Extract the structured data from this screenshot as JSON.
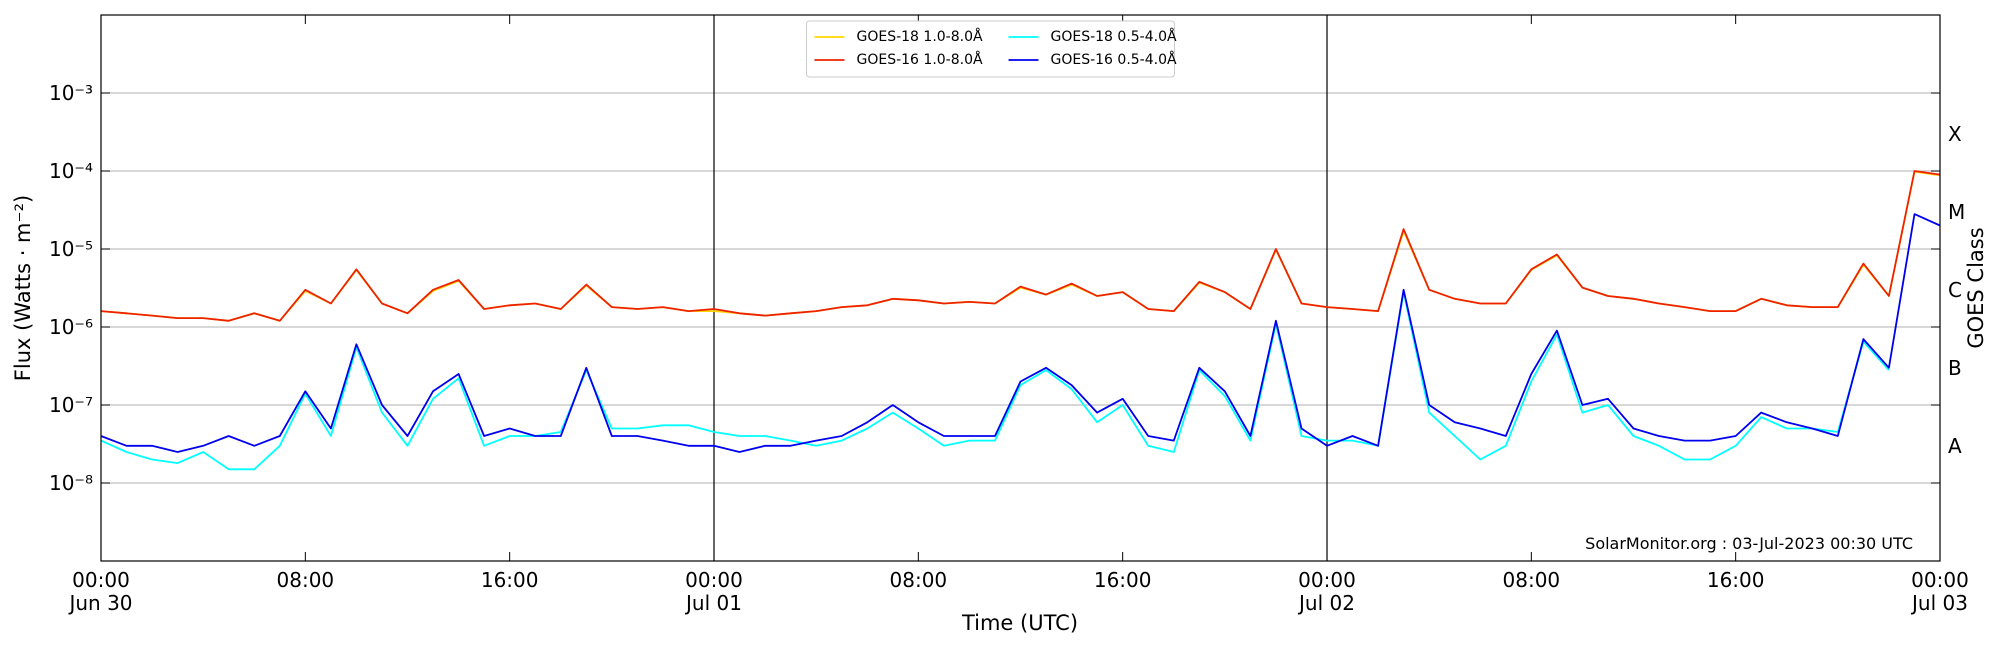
{
  "chart_data": {
    "type": "line",
    "yscale": "log",
    "grid": true,
    "legend_position": "upper center",
    "xlabel": "Time (UTC)",
    "ylabel": "Flux (Watts · m⁻²)",
    "y2label": "GOES Class",
    "annotation": "SolarMonitor.org : 03-Jul-2023 00:30 UTC",
    "x": [
      "Jun 30 00:00",
      "Jun 30 01:00",
      "Jun 30 02:00",
      "Jun 30 03:00",
      "Jun 30 04:00",
      "Jun 30 05:00",
      "Jun 30 06:00",
      "Jun 30 07:00",
      "Jun 30 08:00",
      "Jun 30 09:00",
      "Jun 30 10:00",
      "Jun 30 11:00",
      "Jun 30 12:00",
      "Jun 30 13:00",
      "Jun 30 14:00",
      "Jun 30 15:00",
      "Jun 30 16:00",
      "Jun 30 17:00",
      "Jun 30 18:00",
      "Jun 30 19:00",
      "Jun 30 20:00",
      "Jun 30 21:00",
      "Jun 30 22:00",
      "Jun 30 23:00",
      "Jul 01 00:00",
      "Jul 01 01:00",
      "Jul 01 02:00",
      "Jul 01 03:00",
      "Jul 01 04:00",
      "Jul 01 05:00",
      "Jul 01 06:00",
      "Jul 01 07:00",
      "Jul 01 08:00",
      "Jul 01 09:00",
      "Jul 01 10:00",
      "Jul 01 11:00",
      "Jul 01 12:00",
      "Jul 01 13:00",
      "Jul 01 14:00",
      "Jul 01 15:00",
      "Jul 01 16:00",
      "Jul 01 17:00",
      "Jul 01 18:00",
      "Jul 01 19:00",
      "Jul 01 20:00",
      "Jul 01 21:00",
      "Jul 01 22:00",
      "Jul 01 23:00",
      "Jul 02 00:00",
      "Jul 02 01:00",
      "Jul 02 02:00",
      "Jul 02 03:00",
      "Jul 02 04:00",
      "Jul 02 05:00",
      "Jul 02 06:00",
      "Jul 02 07:00",
      "Jul 02 08:00",
      "Jul 02 09:00",
      "Jul 02 10:00",
      "Jul 02 11:00",
      "Jul 02 12:00",
      "Jul 02 13:00",
      "Jul 02 14:00",
      "Jul 02 15:00",
      "Jul 02 16:00",
      "Jul 02 17:00",
      "Jul 02 18:00",
      "Jul 02 19:00",
      "Jul 02 20:00",
      "Jul 02 21:00",
      "Jul 02 22:00",
      "Jul 02 23:00",
      "Jul 03 00:00"
    ],
    "xlim": [
      "Jun 30 00:00",
      "Jul 03 00:00"
    ],
    "xticks": [
      {
        "value": "Jun 30 00:00",
        "label": "00:00\nJun 30"
      },
      {
        "value": "Jun 30 08:00",
        "label": "08:00"
      },
      {
        "value": "Jun 30 16:00",
        "label": "16:00"
      },
      {
        "value": "Jul 01 00:00",
        "label": "00:00\nJul 01"
      },
      {
        "value": "Jul 01 08:00",
        "label": "08:00"
      },
      {
        "value": "Jul 01 16:00",
        "label": "16:00"
      },
      {
        "value": "Jul 02 00:00",
        "label": "00:00\nJul 02"
      },
      {
        "value": "Jul 02 08:00",
        "label": "08:00"
      },
      {
        "value": "Jul 02 16:00",
        "label": "16:00"
      },
      {
        "value": "Jul 03 00:00",
        "label": "00:00\nJul 03"
      }
    ],
    "ylim": [
      1e-09,
      0.01
    ],
    "yticks": [
      {
        "value": 1e-08,
        "label": "10⁻⁸"
      },
      {
        "value": 1e-07,
        "label": "10⁻⁷"
      },
      {
        "value": 1e-06,
        "label": "10⁻⁶"
      },
      {
        "value": 1e-05,
        "label": "10⁻⁵"
      },
      {
        "value": 0.0001,
        "label": "10⁻⁴"
      },
      {
        "value": 0.001,
        "label": "10⁻³"
      }
    ],
    "y2lim": [
      1e-09,
      0.01
    ],
    "y2ticks": [
      {
        "value": 3e-08,
        "label": "A"
      },
      {
        "value": 3e-07,
        "label": "B"
      },
      {
        "value": 3e-06,
        "label": "C"
      },
      {
        "value": 3e-05,
        "label": "M"
      },
      {
        "value": 0.0003,
        "label": "X"
      }
    ],
    "series": [
      {
        "name": "GOES-18 1.0-8.0Å",
        "color": "#ffd700",
        "values": [
          1.6e-06,
          1.5e-06,
          1.4e-06,
          1.3e-06,
          1.3e-06,
          1.2e-06,
          1.5e-06,
          1.2e-06,
          2.9e-06,
          2e-06,
          5.4e-06,
          2e-06,
          1.5e-06,
          2.9e-06,
          3.9e-06,
          1.7e-06,
          1.9e-06,
          2e-06,
          1.7e-06,
          3.4e-06,
          1.8e-06,
          1.7e-06,
          1.8e-06,
          1.6e-06,
          1.6e-06,
          1.5e-06,
          1.4e-06,
          1.5e-06,
          1.6e-06,
          1.8e-06,
          1.9e-06,
          2.3e-06,
          2.2e-06,
          2e-06,
          2.1e-06,
          2e-06,
          3.2e-06,
          2.6e-06,
          3.5e-06,
          2.5e-06,
          2.8e-06,
          1.7e-06,
          1.6e-06,
          3.7e-06,
          2.8e-06,
          1.7e-06,
          9.8e-06,
          2e-06,
          1.8e-06,
          1.7e-06,
          1.6e-06,
          1.7e-05,
          3e-06,
          2.3e-06,
          2e-06,
          2e-06,
          5.4e-06,
          8.3e-06,
          3.2e-06,
          2.5e-06,
          2.3e-06,
          2e-06,
          1.8e-06,
          1.6e-06,
          1.6e-06,
          2.3e-06,
          1.9e-06,
          1.8e-06,
          1.8e-06,
          6.3e-06,
          2.5e-06,
          9.8e-05,
          8.8e-05
        ]
      },
      {
        "name": "GOES-16 1.0-8.0Å",
        "color": "#ee2200",
        "values": [
          1.6e-06,
          1.5e-06,
          1.4e-06,
          1.3e-06,
          1.3e-06,
          1.2e-06,
          1.5e-06,
          1.2e-06,
          3e-06,
          2e-06,
          5.5e-06,
          2e-06,
          1.5e-06,
          3e-06,
          4e-06,
          1.7e-06,
          1.9e-06,
          2e-06,
          1.7e-06,
          3.5e-06,
          1.8e-06,
          1.7e-06,
          1.8e-06,
          1.6e-06,
          1.7e-06,
          1.5e-06,
          1.4e-06,
          1.5e-06,
          1.6e-06,
          1.8e-06,
          1.9e-06,
          2.3e-06,
          2.2e-06,
          2e-06,
          2.1e-06,
          2e-06,
          3.3e-06,
          2.6e-06,
          3.6e-06,
          2.5e-06,
          2.8e-06,
          1.7e-06,
          1.6e-06,
          3.8e-06,
          2.8e-06,
          1.7e-06,
          1e-05,
          2e-06,
          1.8e-06,
          1.7e-06,
          1.6e-06,
          1.8e-05,
          3e-06,
          2.3e-06,
          2e-06,
          2e-06,
          5.5e-06,
          8.5e-06,
          3.2e-06,
          2.5e-06,
          2.3e-06,
          2e-06,
          1.8e-06,
          1.6e-06,
          1.6e-06,
          2.3e-06,
          1.9e-06,
          1.8e-06,
          1.8e-06,
          6.5e-06,
          2.5e-06,
          0.0001,
          9e-05
        ]
      },
      {
        "name": "GOES-18 0.5-4.0Å",
        "color": "#00ffff",
        "values": [
          3.5e-08,
          2.5e-08,
          2e-08,
          1.8e-08,
          2.5e-08,
          1.5e-08,
          1.5e-08,
          3e-08,
          1.4e-07,
          4e-08,
          5.5e-07,
          8e-08,
          3e-08,
          1.2e-07,
          2.2e-07,
          3e-08,
          4e-08,
          4e-08,
          4.5e-08,
          2.8e-07,
          5e-08,
          5e-08,
          5.5e-08,
          5.5e-08,
          4.5e-08,
          4e-08,
          4e-08,
          3.5e-08,
          3e-08,
          3.5e-08,
          5e-08,
          8e-08,
          5e-08,
          3e-08,
          3.5e-08,
          3.5e-08,
          1.8e-07,
          2.8e-07,
          1.6e-07,
          6e-08,
          1e-07,
          3e-08,
          2.5e-08,
          2.8e-07,
          1.3e-07,
          3.5e-08,
          1.1e-06,
          4e-08,
          3.5e-08,
          3.5e-08,
          3e-08,
          2.8e-06,
          8e-08,
          4e-08,
          2e-08,
          3e-08,
          2e-07,
          8e-07,
          8e-08,
          1e-07,
          4e-08,
          3e-08,
          2e-08,
          2e-08,
          3e-08,
          7e-08,
          5e-08,
          5e-08,
          4.5e-08,
          6.5e-07,
          2.8e-07,
          null,
          null
        ]
      },
      {
        "name": "GOES-16 0.5-4.0Å",
        "color": "#0000ee",
        "values": [
          4e-08,
          3e-08,
          3e-08,
          2.5e-08,
          3e-08,
          4e-08,
          3e-08,
          4e-08,
          1.5e-07,
          5e-08,
          6e-07,
          1e-07,
          4e-08,
          1.5e-07,
          2.5e-07,
          4e-08,
          5e-08,
          4e-08,
          4e-08,
          3e-07,
          4e-08,
          4e-08,
          3.5e-08,
          3e-08,
          3e-08,
          2.5e-08,
          3e-08,
          3e-08,
          3.5e-08,
          4e-08,
          6e-08,
          1e-07,
          6e-08,
          4e-08,
          4e-08,
          4e-08,
          2e-07,
          3e-07,
          1.8e-07,
          8e-08,
          1.2e-07,
          4e-08,
          3.5e-08,
          3e-07,
          1.5e-07,
          4e-08,
          1.2e-06,
          5e-08,
          3e-08,
          4e-08,
          3e-08,
          3e-06,
          1e-07,
          6e-08,
          5e-08,
          4e-08,
          2.5e-07,
          9e-07,
          1e-07,
          1.2e-07,
          5e-08,
          4e-08,
          3.5e-08,
          3.5e-08,
          4e-08,
          8e-08,
          6e-08,
          5e-08,
          4e-08,
          7e-07,
          3e-07,
          2.8e-05,
          2e-05
        ]
      }
    ]
  }
}
